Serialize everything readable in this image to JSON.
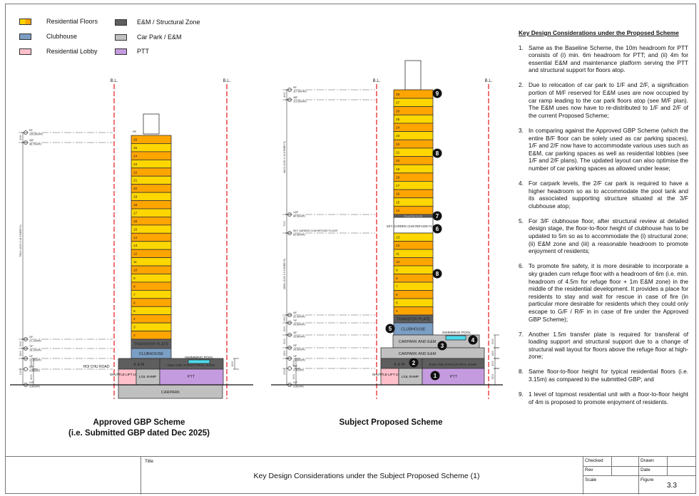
{
  "legend": [
    {
      "label": "Residential Floors",
      "colors": [
        "#FFD700",
        "#FFA500"
      ]
    },
    {
      "label": "Clubhouse",
      "colors": [
        "#7B9EC4"
      ]
    },
    {
      "label": "Residential Lobby",
      "colors": [
        "#FFC0CB"
      ]
    },
    {
      "label": "E&M / Structural Zone",
      "colors": [
        "#5E5E5E"
      ]
    },
    {
      "label": "Car Park / E&M",
      "colors": [
        "#C0C0C0"
      ]
    },
    {
      "label": "PTT",
      "colors": [
        "#C59BE0"
      ]
    }
  ],
  "colors": {
    "res_a": "#FFA500",
    "res_b": "#FFD700",
    "clubhouse": "#7B9EC4",
    "lobby": "#FFC0CB",
    "em": "#5E5E5E",
    "carpark": "#C0C0C0",
    "ptt": "#C59BE0",
    "pool": "#4DD9EC",
    "boundary": "#E8262A"
  },
  "boundary_label": "B.L.",
  "approved": {
    "caption_1": "Approved GBP Scheme",
    "caption_2": "(i.e. Submitted GBP dated Dec 2025)",
    "floors": [
      "26",
      "25",
      "24",
      "23",
      "22",
      "21",
      "20",
      "19",
      "18",
      "17",
      "16",
      "15",
      "14",
      "13",
      "12",
      "11",
      "10",
      "9",
      "8",
      "7",
      "6",
      "5",
      "4",
      "3",
      "2"
    ],
    "roof_label": "RF",
    "transfer_plate": "TRANSFER PLATE",
    "clubhouse": "CLUBHOUSE",
    "swimming_pool": "SWIMMING POOL",
    "em": "E & M",
    "em_structural": "E&M AND STRUCTURAL ZONE",
    "shuttle_lobby": "SHUTTLE LIFT LOBBY",
    "lul_ramp": "L/UL RAMP",
    "ptt": "PTT",
    "carpark": "CARPARK",
    "road": "HOI CHU ROAD",
    "levels": [
      {
        "name": "RF",
        "mpd": "100.85mPD"
      },
      {
        "name": "26F",
        "mpd": "96.70mPD"
      },
      {
        "name": "2/F",
        "mpd": "21.10mPD"
      },
      {
        "name": "T/F",
        "mpd": "18.10mPD"
      },
      {
        "name": "1/F",
        "mpd": "13.80mPD"
      },
      {
        "name": "M/F",
        "mpd": "9.80mPD"
      },
      {
        "name": "G/F",
        "mpd": "3.80mPD"
      }
    ],
    "dims": [
      "4150",
      "75600 (3150 X 24 STOREYS)",
      "3000",
      "4300",
      "10000",
      "6000",
      "4000",
      "5000"
    ]
  },
  "proposed": {
    "caption": "Subject Proposed Scheme",
    "upper_floors": [
      "28",
      "27",
      "26",
      "25",
      "24",
      "23",
      "22",
      "21",
      "20",
      "19",
      "18",
      "17",
      "16",
      "15",
      "14"
    ],
    "lower_floors": [
      "13",
      "12",
      "11",
      "10",
      "9",
      "8",
      "7",
      "6",
      "5",
      "4"
    ],
    "transfer_plate_upper": "TRANSFER PLATE",
    "sky_garden": "SKY GARDEN CUM REFUGE FLOOR",
    "transfer_plate": "TRANSFER PLATE",
    "clubhouse": "CLUBHOUSE",
    "swimming_pool": "SWIMMING POOL",
    "carpark_em_upper": "CARPARK AND E&M",
    "carpark_em_lower": "CARPARK AND E&M",
    "em": "E & M",
    "em_structural": "E&M AND STRUCTURAL ZONE",
    "shuttle_lobby": "SHUTTLE LIFT LOBBY",
    "lul_ramp": "L/UL RAMP",
    "ptt": "PTT",
    "markers": [
      "1",
      "2",
      "3",
      "4",
      "5",
      "6",
      "7",
      "8",
      "8",
      "9"
    ],
    "levels": [
      {
        "name": "RF",
        "mpd": "117.60mPD"
      },
      {
        "name": "28F",
        "mpd": "113.60mPD"
      },
      {
        "name": "14/F",
        "mpd": "69.50mPD"
      },
      {
        "name": "SKY GARDEN CUM REFUGE FLOOR",
        "mpd": "62.50mPD"
      },
      {
        "name": "4/F",
        "mpd": "31.30mPD"
      },
      {
        "name": "T/F",
        "mpd": "29.80mPD"
      },
      {
        "name": "3/F",
        "mpd": "23.80mPD"
      },
      {
        "name": "2/F",
        "mpd": "18.80mPD"
      },
      {
        "name": "1/F",
        "mpd": "13.80mPD"
      },
      {
        "name": "M/F",
        "mpd": "9.30mPD"
      },
      {
        "name": "G/F",
        "mpd": "3.80mPD"
      }
    ],
    "dims": [
      "4000",
      "44100 (3150 X 14 STOREYS)",
      "7000",
      "28350 (3150 X 9 STOREYS)",
      "1500",
      "5000",
      "5000",
      "4200",
      "10000",
      "4000",
      "5000"
    ]
  },
  "notes": {
    "heading": "Key Design Considerations under the Proposed Scheme",
    "items": [
      {
        "num": "1.",
        "text": "Same as the Baseline Scheme, the 10m headroom for PTT consists of (i) min. 6m headroom for PTT; and (ii) 4m for essential E&M and maintenance platform serving the PTT and structural support for floors atop."
      },
      {
        "num": "2.",
        "text": "Due to relocation of car park to 1/F and 2/F, a signification portion of M/F reserved for E&M uses are now occupied by car ramp leading to the car park floors atop (see M/F plan). The E&M uses now have to re-distributed to 1/F and 2/F of the current Proposed Scheme;"
      },
      {
        "num": "3.",
        "text": "In comparing against the Approved GBP Scheme (which the entire B/F floor can be solely used as car parking spaces), 1/F and 2/F now have to accommodate various uses such as E&M, car parking spaces as well as residential lobbies (see 1/F and 2/F plans). The updated layout can also optimise the number of car parking spaces as allowed under lease;"
      },
      {
        "num": "4.",
        "text": "For carpark levels, the 2/F car park is required to have a higher headroom so as to accommodate the pool tank and its associated supporting structure situated at the 3/F clubhouse atop;"
      },
      {
        "num": "5.",
        "text": "For 3/F clubhouse floor, after structural review at detailed design stage, the floor-to-floor height of clubhouse has to be updated to 5m so as to accommodate the (i) structural zone; (ii) E&M zone and (iii) a reasonable headroom to promote enjoyment of residents;"
      },
      {
        "num": "6.",
        "text": "To promote fire safety, it is more desirable to incorporate a sky graden cum refuge floor with a headroom of 6m (i.e. min. headroom of 4.5m for refuge floor + 1m E&M zone) in the middle of the residential development. It provides a place for residents to stay and wait for rescue in case of fire (in particular more desirable for residents which they could only escape to G/F / R/F in in case of fire under the Approved GBP Scheme);"
      },
      {
        "num": "7.",
        "text": "Another 1.5m transfer plate is required for transferal of loading support and structural support due to a change of structural wall layout for floors above the refuge floor at high-zone;"
      },
      {
        "num": "8.",
        "text": "Same floor-to-floor height for typical residential floors (i.e. 3.15m) as compared to the submitted GBP; and"
      },
      {
        "num": "9.",
        "text": "1 level of topmost residential unit with a floor-to-floor height of 4m is proposed to promote enjoyment of residents."
      }
    ]
  },
  "title_block": {
    "title_label": "Title",
    "title": "Key Design Considerations under the Subject Proposed Scheme (1)",
    "checked_label": "Checked",
    "drawn_label": "Drawn",
    "rev_label": "Rev",
    "date_label": "Date",
    "scale_label": "Scale",
    "figure_label": "Figure",
    "figure": "3.3"
  }
}
